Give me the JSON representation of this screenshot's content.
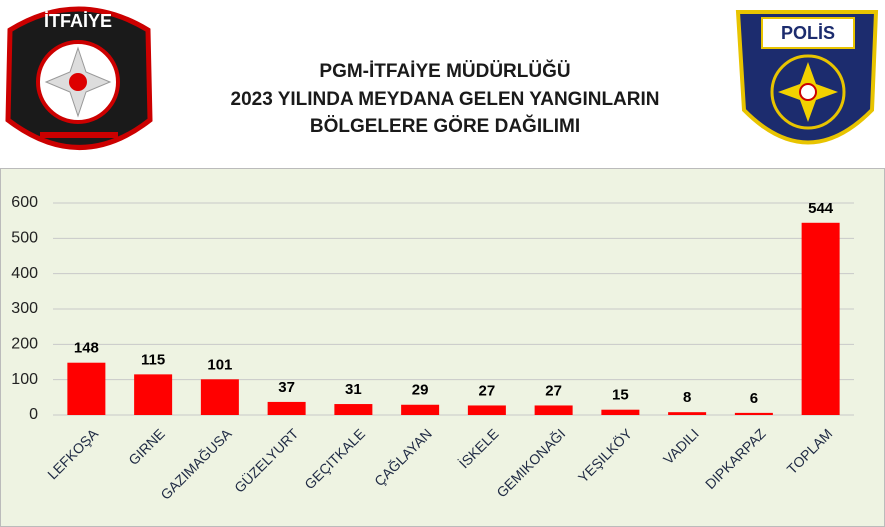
{
  "logos": {
    "left": "İTFAİYE",
    "right": "POLİS"
  },
  "chart_data": {
    "type": "bar",
    "title": [
      "PGM-İTFAİYE MÜDÜRLÜĞÜ",
      "2023 YILINDA MEYDANA GELEN YANGINLARIN",
      "BÖLGELERE GÖRE DAĞILIMI"
    ],
    "categories": [
      "LEFKOŞA",
      "GIRNE",
      "GAZIMAĞUSA",
      "GÜZELYURT",
      "GEÇITKALE",
      "ÇAĞLAYAN",
      "İSKELE",
      "GEMIKONAĞI",
      "YEŞILKÖY",
      "VADILI",
      "DIPKARPAZ",
      "TOPLAM"
    ],
    "values": [
      148,
      115,
      101,
      37,
      31,
      29,
      27,
      27,
      15,
      8,
      6,
      544
    ],
    "color": "#ff0000",
    "ylim": [
      0,
      600
    ],
    "yticks": [
      0,
      100,
      200,
      300,
      400,
      500,
      600
    ],
    "grid": true
  }
}
